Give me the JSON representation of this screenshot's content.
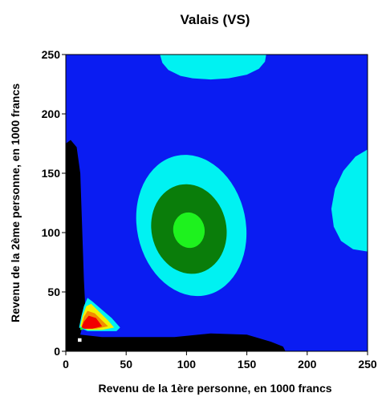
{
  "chart_data": {
    "type": "heatmap",
    "title": "Valais (VS)",
    "xlabel": "Revenu de la 1ère personne, en 1000 francs",
    "ylabel": "Revenu de la 2ème personne, en 1000 francs",
    "xlim": [
      0,
      250
    ],
    "ylim": [
      0,
      250
    ],
    "xticks": [
      0,
      50,
      100,
      150,
      200,
      250
    ],
    "yticks": [
      0,
      50,
      100,
      150,
      200,
      250
    ],
    "tick_labels_x": [
      "0",
      "50",
      "100",
      "150",
      "200",
      "250"
    ],
    "tick_labels_y": [
      "0",
      "50",
      "100",
      "150",
      "200",
      "250"
    ],
    "grid": false,
    "background_color": "#0a1cf2",
    "regions": [
      {
        "name": "black-left-band",
        "color": "#000000",
        "polygon": [
          [
            0,
            0
          ],
          [
            0,
            175
          ],
          [
            4,
            178
          ],
          [
            9,
            172
          ],
          [
            12,
            150
          ],
          [
            13,
            120
          ],
          [
            14,
            90
          ],
          [
            15,
            60
          ],
          [
            16,
            40
          ],
          [
            14,
            22
          ],
          [
            12,
            14
          ],
          [
            30,
            12
          ],
          [
            60,
            12
          ],
          [
            90,
            12
          ],
          [
            120,
            15
          ],
          [
            150,
            14
          ],
          [
            170,
            8
          ],
          [
            180,
            4
          ],
          [
            182,
            0
          ]
        ]
      },
      {
        "name": "cyan-top-blob",
        "color": "#00f2f2",
        "polygon": [
          [
            78,
            250
          ],
          [
            80,
            243
          ],
          [
            85,
            237
          ],
          [
            95,
            232
          ],
          [
            105,
            230
          ],
          [
            120,
            229
          ],
          [
            135,
            230
          ],
          [
            150,
            233
          ],
          [
            160,
            238
          ],
          [
            165,
            244
          ],
          [
            166,
            250
          ]
        ]
      },
      {
        "name": "cyan-right-blob",
        "color": "#00f2f2",
        "polygon": [
          [
            250,
            170
          ],
          [
            240,
            164
          ],
          [
            230,
            152
          ],
          [
            223,
            137
          ],
          [
            220,
            120
          ],
          [
            222,
            105
          ],
          [
            228,
            93
          ],
          [
            238,
            86
          ],
          [
            250,
            84
          ]
        ]
      },
      {
        "name": "cyan-center-ring",
        "color": "#00f2f2",
        "ellipse": {
          "cx": 104,
          "cy": 106,
          "rx": 45,
          "ry": 60,
          "rotate": -12
        }
      },
      {
        "name": "darkgreen-ring",
        "color": "#0a7d0a",
        "ellipse": {
          "cx": 102,
          "cy": 103,
          "rx": 31,
          "ry": 38,
          "rotate": -12
        }
      },
      {
        "name": "lightgreen-core",
        "color": "#1ef21e",
        "ellipse": {
          "cx": 102,
          "cy": 102,
          "rx": 13,
          "ry": 15,
          "rotate": -10
        }
      },
      {
        "name": "corner-cyan",
        "color": "#00f2f2",
        "polygon": [
          [
            11,
            20
          ],
          [
            13,
            30
          ],
          [
            15,
            38
          ],
          [
            18,
            45
          ],
          [
            22,
            42
          ],
          [
            30,
            35
          ],
          [
            38,
            28
          ],
          [
            45,
            20
          ],
          [
            42,
            17
          ],
          [
            30,
            17
          ],
          [
            18,
            17
          ]
        ]
      },
      {
        "name": "corner-yellow",
        "color": "#f2f200",
        "polygon": [
          [
            12,
            21
          ],
          [
            14,
            30
          ],
          [
            17,
            38
          ],
          [
            21,
            40
          ],
          [
            28,
            33
          ],
          [
            35,
            26
          ],
          [
            40,
            20
          ],
          [
            30,
            18
          ],
          [
            18,
            18
          ]
        ]
      },
      {
        "name": "corner-orange",
        "color": "#f28c00",
        "polygon": [
          [
            13,
            21
          ],
          [
            15,
            29
          ],
          [
            18,
            34
          ],
          [
            24,
            32
          ],
          [
            30,
            26
          ],
          [
            35,
            21
          ],
          [
            25,
            19
          ],
          [
            16,
            19
          ]
        ]
      },
      {
        "name": "corner-red",
        "color": "#f20000",
        "polygon": [
          [
            13,
            20
          ],
          [
            15,
            25
          ],
          [
            19,
            30
          ],
          [
            25,
            28
          ],
          [
            28,
            24
          ],
          [
            30,
            21
          ],
          [
            22,
            19
          ],
          [
            15,
            19
          ]
        ]
      },
      {
        "name": "corner-white-speck",
        "color": "#ffffff",
        "polygon": [
          [
            10,
            8
          ],
          [
            10,
            11
          ],
          [
            13,
            11
          ],
          [
            13,
            8
          ]
        ]
      },
      {
        "name": "corner-lime-speck",
        "color": "#1ef21e",
        "polygon": [
          [
            12,
            18
          ],
          [
            12,
            20
          ],
          [
            14,
            20
          ],
          [
            14,
            18
          ]
        ]
      }
    ]
  }
}
